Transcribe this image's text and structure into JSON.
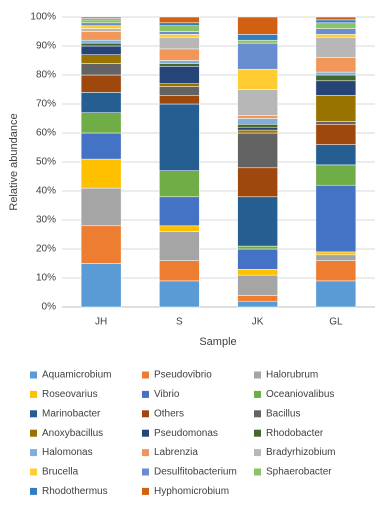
{
  "chart_data": {
    "type": "stacked_bar",
    "x_label": "Sample",
    "y_label": "Relative abundance",
    "categories": [
      "JH",
      "S",
      "JK",
      "GL"
    ],
    "ylim": [
      0,
      100
    ],
    "yticks": [
      {
        "value": 0,
        "label": "0%"
      },
      {
        "value": 10,
        "label": "10%"
      },
      {
        "value": 20,
        "label": "20%"
      },
      {
        "value": 30,
        "label": "30%"
      },
      {
        "value": 40,
        "label": "40%"
      },
      {
        "value": 50,
        "label": "50%"
      },
      {
        "value": 60,
        "label": "60%"
      },
      {
        "value": 70,
        "label": "70%"
      },
      {
        "value": 80,
        "label": "80%"
      },
      {
        "value": 90,
        "label": "90%"
      },
      {
        "value": 100,
        "label": "100%"
      }
    ],
    "grid": true,
    "legend": "bottom",
    "series": [
      {
        "name": "Aquamicrobium",
        "color": "#5B9BD5",
        "values": [
          15,
          9,
          2,
          9
        ]
      },
      {
        "name": "Pseudovibrio",
        "color": "#ED7D31",
        "values": [
          13,
          7,
          2,
          7
        ]
      },
      {
        "name": "Halorubrum",
        "color": "#A5A5A5",
        "values": [
          13,
          10,
          7,
          2
        ]
      },
      {
        "name": "Roseovarius",
        "color": "#FFC000",
        "values": [
          10,
          2,
          2,
          1
        ]
      },
      {
        "name": "Vibrio",
        "color": "#4472C4",
        "values": [
          9,
          10,
          7,
          23
        ]
      },
      {
        "name": "Oceaniovalibus",
        "color": "#70AD47",
        "values": [
          7,
          9,
          1,
          7
        ]
      },
      {
        "name": "Marinobacter",
        "color": "#255E91",
        "values": [
          7,
          23,
          17,
          7
        ]
      },
      {
        "name": "Others",
        "color": "#9E480E",
        "values": [
          6,
          3,
          10,
          7
        ]
      },
      {
        "name": "Bacillus",
        "color": "#636363",
        "values": [
          4,
          3,
          12,
          1
        ]
      },
      {
        "name": "Anoxybacillus",
        "color": "#997300",
        "values": [
          3,
          1,
          1,
          9
        ]
      },
      {
        "name": "Pseudomonas",
        "color": "#264478",
        "values": [
          3,
          6,
          1,
          5
        ]
      },
      {
        "name": "Rhodobacter",
        "color": "#43682B",
        "values": [
          1,
          1,
          1,
          2
        ]
      },
      {
        "name": "Halomonas",
        "color": "#7CAFDD",
        "values": [
          1,
          1,
          2,
          1
        ]
      },
      {
        "name": "Labrenzia",
        "color": "#F1975A",
        "values": [
          3,
          4,
          1,
          5
        ]
      },
      {
        "name": "Bradyrhizobium",
        "color": "#B7B7B7",
        "values": [
          1,
          4,
          9,
          7
        ]
      },
      {
        "name": "Brucella",
        "color": "#FFCD33",
        "values": [
          1,
          1,
          7,
          1
        ]
      },
      {
        "name": "Desulfitobacterium",
        "color": "#698ED0",
        "values": [
          1,
          1,
          9,
          2
        ]
      },
      {
        "name": "Sphaerobacter",
        "color": "#8CC168",
        "values": [
          1,
          2,
          1,
          2
        ]
      },
      {
        "name": "Rhodothermus",
        "color": "#327DC2",
        "values": [
          0.5,
          1,
          2,
          1
        ]
      },
      {
        "name": "Hyphomicrobium",
        "color": "#D26012",
        "values": [
          0.5,
          2,
          6,
          1
        ]
      }
    ]
  }
}
